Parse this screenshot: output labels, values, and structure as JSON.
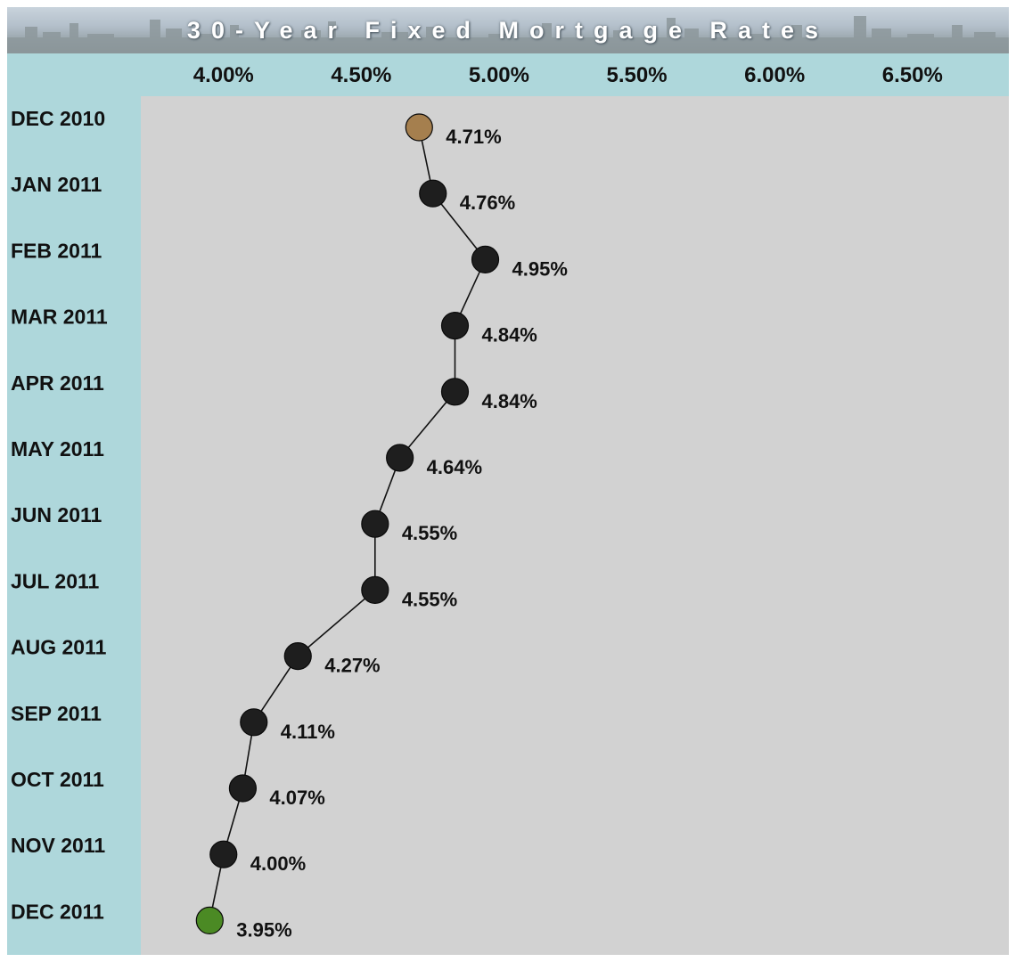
{
  "colors": {
    "header_band": "#aed7db",
    "plot_background": "#d2d2d2",
    "marker_default": "#1e1e1e",
    "marker_first": "#a57f4e",
    "marker_last": "#4b8a24",
    "line": "#111111"
  },
  "chart_data": {
    "type": "line",
    "title": "30-Year Fixed Mortgage Rates",
    "xlabel": "",
    "ylabel": "",
    "orientation": "horizontal",
    "x_axis_position": "top",
    "xlim": [
      3.7,
      6.85
    ],
    "x_ticks": [
      4.0,
      4.5,
      5.0,
      5.5,
      6.0,
      6.5
    ],
    "x_tick_labels": [
      "4.00%",
      "4.50%",
      "5.00%",
      "5.50%",
      "6.00%",
      "6.50%"
    ],
    "grid": false,
    "legend": "none",
    "categories": [
      "DEC 2010",
      "JAN 2011",
      "FEB 2011",
      "MAR 2011",
      "APR 2011",
      "MAY 2011",
      "JUN 2011",
      "JUL 2011",
      "AUG 2011",
      "SEP 2011",
      "OCT 2011",
      "NOV 2011",
      "DEC 2011"
    ],
    "series": [
      {
        "values": [
          4.71,
          4.76,
          4.95,
          4.84,
          4.84,
          4.64,
          4.55,
          4.55,
          4.27,
          4.11,
          4.07,
          4.0,
          3.95
        ],
        "labels": [
          "4.71%",
          "4.76%",
          "4.95%",
          "4.84%",
          "4.84%",
          "4.64%",
          "4.55%",
          "4.55%",
          "4.27%",
          "4.11%",
          "4.07%",
          "4.00%",
          "3.95%"
        ]
      }
    ]
  }
}
